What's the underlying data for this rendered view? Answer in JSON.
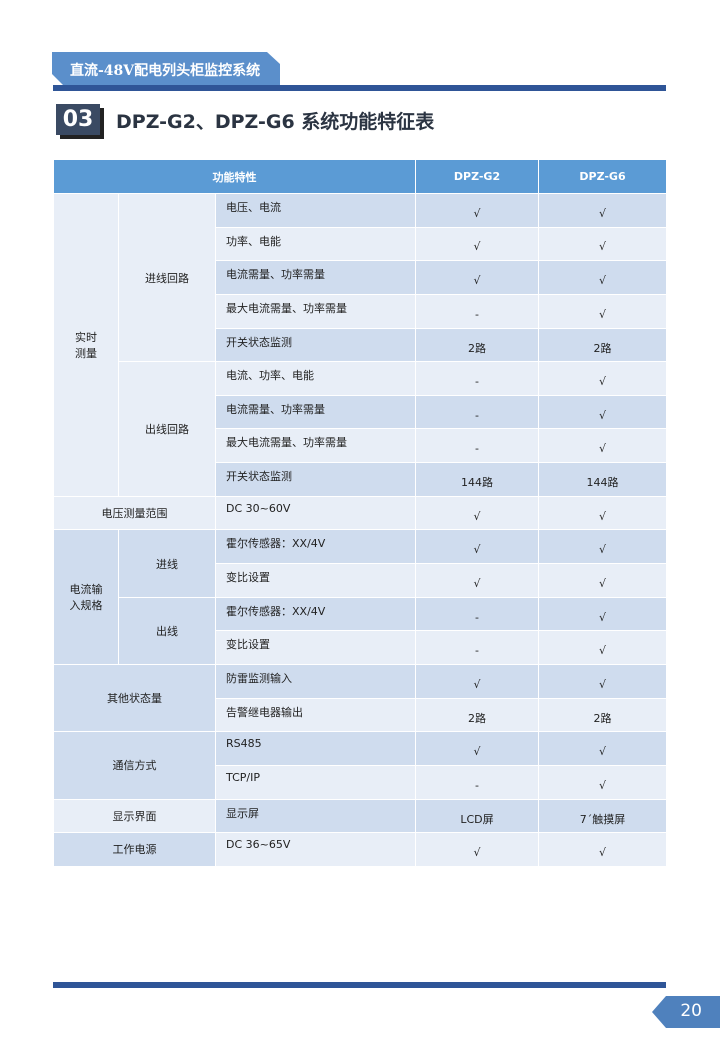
{
  "header": {
    "tab_title": "直流-48V配电列头柜监控系统",
    "section_number": "03",
    "section_title": "DPZ-G2、DPZ-G6 系统功能特征表"
  },
  "table": {
    "headers": [
      "功能特性",
      "DPZ-G2",
      "DPZ-G6"
    ],
    "groups": [
      {
        "label": "实时\n测量",
        "subgroups": [
          {
            "label": "进线回路",
            "rows": [
              [
                "电压、电流",
                "√",
                "√"
              ],
              [
                "功率、电能",
                "√",
                "√"
              ],
              [
                "电流需量、功率需量",
                "√",
                "√"
              ],
              [
                "最大电流需量、功率需量",
                "-",
                "√"
              ],
              [
                "开关状态监测",
                "2路",
                "2路"
              ]
            ]
          },
          {
            "label": "出线回路",
            "rows": [
              [
                "电流、功率、电能",
                "-",
                "√"
              ],
              [
                "电流需量、功率需量",
                "-",
                "√"
              ],
              [
                "最大电流需量、功率需量",
                "-",
                "√"
              ],
              [
                "开关状态监测",
                "144路",
                "144路"
              ]
            ]
          }
        ]
      },
      {
        "label": "电压测量范围",
        "rows": [
          [
            "DC 30~60V",
            "√",
            "√"
          ]
        ]
      },
      {
        "label": "电流输\n入规格",
        "subgroups": [
          {
            "label": "进线",
            "rows": [
              [
                "霍尔传感器：XX/4V",
                "√",
                "√"
              ],
              [
                "变比设置",
                "√",
                "√"
              ]
            ]
          },
          {
            "label": "出线",
            "rows": [
              [
                "霍尔传感器：XX/4V",
                "-",
                "√"
              ],
              [
                "变比设置",
                "-",
                "√"
              ]
            ]
          }
        ]
      },
      {
        "label": "其他状态量",
        "rows": [
          [
            "防雷监测输入",
            "√",
            "√"
          ],
          [
            "告警继电器输出",
            "2路",
            "2路"
          ]
        ]
      },
      {
        "label": "通信方式",
        "rows": [
          [
            "RS485",
            "√",
            "√"
          ],
          [
            "TCP/IP",
            "-",
            "√"
          ]
        ]
      },
      {
        "label": "显示界面",
        "rows": [
          [
            "显示屏",
            "LCD屏",
            "7´触摸屏"
          ]
        ]
      },
      {
        "label": "工作电源",
        "rows": [
          [
            "DC 36~65V",
            "√",
            "√"
          ]
        ]
      }
    ]
  },
  "footer": {
    "page_number": "20"
  },
  "colors": {
    "header_bar": "#2f5597",
    "table_header": "#5b9bd5",
    "row_dark": "#cfdcee",
    "row_light": "#e8eef7"
  }
}
